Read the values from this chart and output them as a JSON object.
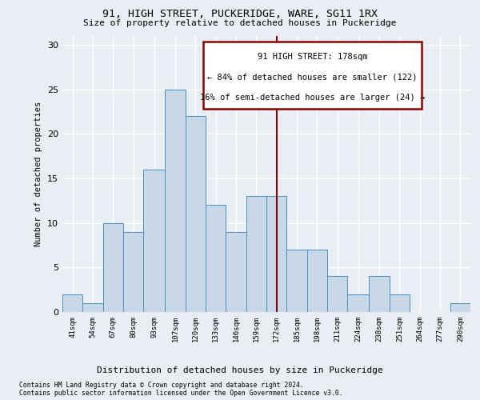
{
  "title1": "91, HIGH STREET, PUCKERIDGE, WARE, SG11 1RX",
  "title2": "Size of property relative to detached houses in Puckeridge",
  "xlabel": "Distribution of detached houses by size in Puckeridge",
  "ylabel": "Number of detached properties",
  "footnote1": "Contains HM Land Registry data © Crown copyright and database right 2024.",
  "footnote2": "Contains public sector information licensed under the Open Government Licence v3.0.",
  "annotation_line1": "91 HIGH STREET: 178sqm",
  "annotation_line2": "← 84% of detached houses are smaller (122)",
  "annotation_line3": "16% of semi-detached houses are larger (24) →",
  "bin_edges": [
    41,
    54,
    67,
    80,
    93,
    107,
    120,
    133,
    146,
    159,
    172,
    185,
    198,
    211,
    224,
    238,
    251,
    264,
    277,
    290,
    303
  ],
  "bar_heights": [
    2,
    1,
    10,
    9,
    16,
    25,
    22,
    12,
    9,
    13,
    13,
    7,
    7,
    4,
    2,
    4,
    2,
    0,
    0,
    1
  ],
  "bar_color": "#c8d8e8",
  "bar_edge_color": "#4a90c4",
  "vline_color": "#8b0000",
  "vline_x": 178.5,
  "box_color": "#8b0000",
  "ylim": [
    0,
    31
  ],
  "yticks": [
    0,
    5,
    10,
    15,
    20,
    25,
    30
  ],
  "background_color": "#e8eef4",
  "grid_color": "#ffffff"
}
